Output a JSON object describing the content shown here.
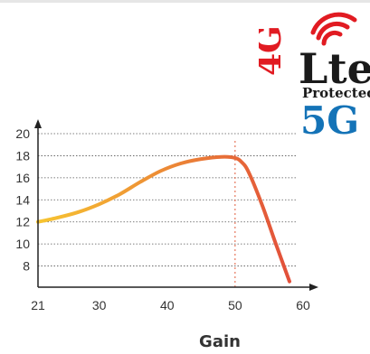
{
  "badge": {
    "line1_a": "4G",
    "line1_b": "Lte",
    "line2": "Protected",
    "line3": "5G",
    "colors": {
      "red": "#e11b22",
      "blue": "#1473b7",
      "ink": "#1a1a1a"
    }
  },
  "chart_data": {
    "type": "line",
    "title": "",
    "xlabel": "Gain",
    "ylabel": "",
    "xlim": [
      21,
      60
    ],
    "ylim": [
      6,
      20
    ],
    "x_ticks": [
      21,
      30,
      40,
      50,
      60
    ],
    "y_ticks": [
      8,
      10,
      12,
      14,
      16,
      18,
      20
    ],
    "grid": "horizontal dotted",
    "vline": {
      "x": 50,
      "style": "dotted",
      "color": "#e05a3a"
    },
    "line_gradient": {
      "start": "#f7c531",
      "end": "#e2503a"
    },
    "series": [
      {
        "x": [
          21,
          24,
          27,
          30,
          33,
          36,
          39,
          42,
          45,
          48,
          50,
          51,
          52,
          54,
          56,
          58
        ],
        "y": [
          12.0,
          12.4,
          12.9,
          13.6,
          14.5,
          15.6,
          16.6,
          17.3,
          17.7,
          17.9,
          17.8,
          17.4,
          16.5,
          13.5,
          10.0,
          6.6
        ]
      }
    ]
  }
}
